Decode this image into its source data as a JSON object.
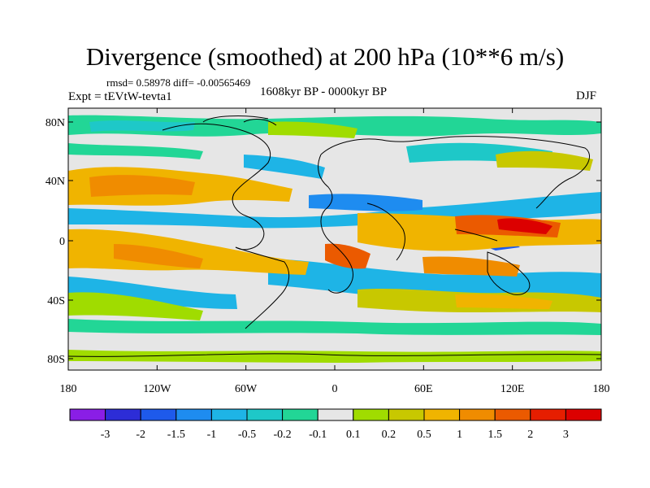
{
  "title": "Divergence (smoothed) at 200 hPa (10**6 m/s)",
  "stats": "rmsd= 0.58978 diff= -0.00565469",
  "experiment": "Expt = tEVtW-tevta1",
  "period": "1608kyr BP - 0000kyr BP",
  "season": "DJF",
  "lat_labels": [
    "80N",
    "40N",
    "0",
    "40S",
    "80S"
  ],
  "lon_labels": [
    "180",
    "120W",
    "60W",
    "0",
    "60E",
    "120E",
    "180"
  ],
  "colorbar": {
    "tick_labels": [
      "-3",
      "-2",
      "-1.5",
      "-1",
      "-0.5",
      "-0.2",
      "-0.1",
      "0.1",
      "0.2",
      "0.5",
      "1",
      "1.5",
      "2",
      "3"
    ],
    "colors": [
      "#8a1ee6",
      "#2d2dd7",
      "#1e5aeb",
      "#1e8cf0",
      "#1eb4e6",
      "#1ec8c8",
      "#22d696",
      "#e6e6e6",
      "#a0dc00",
      "#c8c800",
      "#f0b400",
      "#f08c00",
      "#eb5a00",
      "#e61e00",
      "#dc0000"
    ]
  },
  "colors": {
    "land_outline": "#000000",
    "background": "#e6e6e6"
  }
}
